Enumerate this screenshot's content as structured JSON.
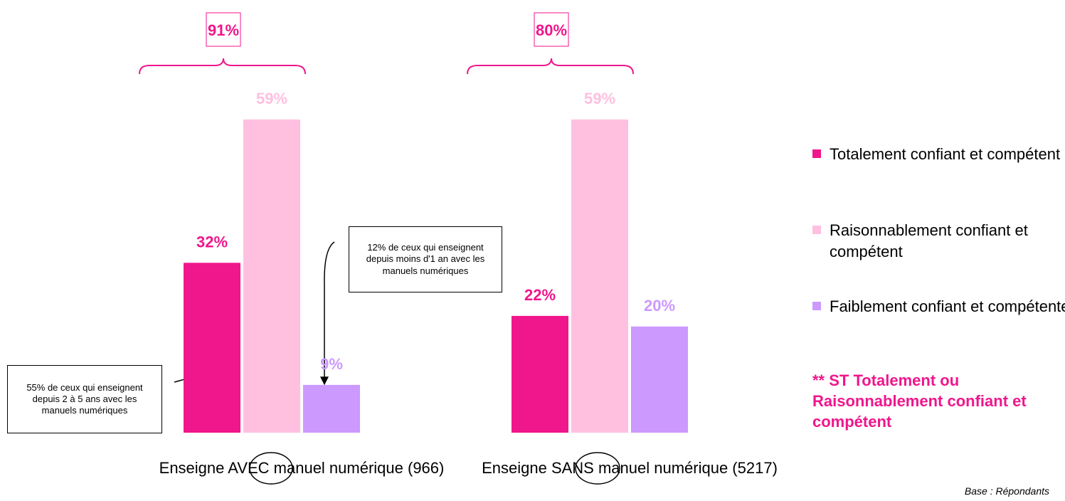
{
  "chart_data": {
    "type": "bar",
    "categories": [
      "Enseigne AVEC manuel numérique (966)",
      "Enseigne SANS manuel numérique (5217)"
    ],
    "series": [
      {
        "name": "Totalement confiant et compétent",
        "color": "#f0168c",
        "values": [
          32,
          22
        ],
        "value_labels": [
          "32%",
          "22%"
        ]
      },
      {
        "name": "Raisonnablement confiant et compétent",
        "color": "#ffc0e0",
        "values": [
          59,
          59
        ],
        "value_labels": [
          "59%",
          "59%"
        ]
      },
      {
        "name": "Faiblement confiant et compétente",
        "color": "#cc99ff",
        "values": [
          9,
          20
        ],
        "value_labels": [
          "9%",
          "20%"
        ]
      }
    ],
    "totals": {
      "values": [
        91,
        80
      ],
      "value_labels": [
        "91%",
        "80%"
      ]
    },
    "legend_note": "** ST Totalement ou Raisonnablement confiant et compétent",
    "annotations": [
      "55% de ceux qui enseignent depuis 2 à 5 ans avec les manuels numériques",
      "12% de ceux qui enseignent depuis moins d'1 an avec les manuels numériques"
    ],
    "footnote": "Base : Répondants"
  }
}
